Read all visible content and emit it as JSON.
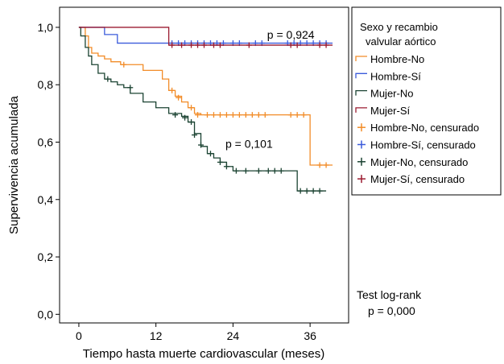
{
  "chart_data": {
    "type": "line",
    "subtype": "kaplan-meier",
    "title": "",
    "xlabel": "Tiempo hasta muerte cardiovascular (meses)",
    "ylabel": "Supervivencia acumulada",
    "xlim": [
      -3,
      42
    ],
    "ylim": [
      -0.03,
      1.07
    ],
    "x_ticks": [
      0,
      12,
      24,
      36
    ],
    "y_ticks": [
      0.0,
      0.2,
      0.4,
      0.6,
      0.8,
      1.0
    ],
    "y_tick_labels": [
      "0,0",
      "0,2",
      "0,4",
      "0,6",
      "0,8",
      "1,0"
    ],
    "grid": false,
    "legend": {
      "title": "Sexo y recambio valvular aórtico",
      "title_lines": [
        "Sexo y recambio",
        "valvular aórtico"
      ],
      "placement": "right",
      "entries": [
        {
          "label": "Hombre-No",
          "kind": "line",
          "color": "#f28c28"
        },
        {
          "label": "Hombre-Sí",
          "kind": "line",
          "color": "#3b5bdb"
        },
        {
          "label": "Mujer-No",
          "kind": "line",
          "color": "#1b4332"
        },
        {
          "label": "Mujer-Sí",
          "kind": "line",
          "color": "#9b1b30"
        },
        {
          "label": "Hombre-No, censurado",
          "kind": "censor",
          "color": "#f28c28"
        },
        {
          "label": "Hombre-Sí, censurado",
          "kind": "censor",
          "color": "#3b5bdb"
        },
        {
          "label": "Mujer-No, censurado",
          "kind": "censor",
          "color": "#1b4332"
        },
        {
          "label": "Mujer-Sí, censurado",
          "kind": "censor",
          "color": "#9b1b30"
        }
      ]
    },
    "annotations": [
      {
        "text": "p = 0,924",
        "x": 33,
        "y": 0.975,
        "anchor": "middle"
      },
      {
        "text": "p = 0,101",
        "x": 26.5,
        "y": 0.595,
        "anchor": "middle"
      }
    ],
    "series": [
      {
        "name": "Hombre-No",
        "color": "#f28c28",
        "x": [
          0,
          0.5,
          1,
          1.5,
          2,
          3,
          4,
          5,
          6.5,
          8,
          10,
          13,
          14,
          15,
          16,
          17,
          18,
          19,
          20,
          21,
          22,
          23,
          24,
          25,
          26,
          27,
          28,
          29,
          30,
          31,
          32,
          33,
          34,
          35,
          36,
          37,
          38,
          39.5
        ],
        "y": [
          1.0,
          1.0,
          0.97,
          0.93,
          0.91,
          0.9,
          0.89,
          0.88,
          0.87,
          0.87,
          0.85,
          0.82,
          0.78,
          0.76,
          0.74,
          0.72,
          0.7,
          0.695,
          0.695,
          0.695,
          0.695,
          0.695,
          0.695,
          0.695,
          0.695,
          0.695,
          0.695,
          0.695,
          0.695,
          0.695,
          0.695,
          0.695,
          0.695,
          0.695,
          0.52,
          0.52,
          0.52,
          0.52
        ],
        "censored": [
          [
            7,
            0.87
          ],
          [
            14.5,
            0.78
          ],
          [
            15.5,
            0.755
          ],
          [
            17.5,
            0.72
          ],
          [
            18.5,
            0.695
          ],
          [
            20,
            0.695
          ],
          [
            21,
            0.695
          ],
          [
            22,
            0.695
          ],
          [
            23,
            0.695
          ],
          [
            24,
            0.695
          ],
          [
            25,
            0.695
          ],
          [
            26,
            0.695
          ],
          [
            27,
            0.695
          ],
          [
            28,
            0.695
          ],
          [
            29,
            0.695
          ],
          [
            33,
            0.695
          ],
          [
            34,
            0.695
          ],
          [
            35,
            0.695
          ],
          [
            37.5,
            0.52
          ],
          [
            38.5,
            0.52
          ]
        ]
      },
      {
        "name": "Hombre-Sí",
        "color": "#3b5bdb",
        "x": [
          0,
          4,
          4,
          6,
          6,
          10,
          10,
          39.5
        ],
        "y": [
          1.0,
          1.0,
          0.975,
          0.975,
          0.945,
          0.945,
          0.945,
          0.945
        ],
        "censored": [
          [
            14.5,
            0.945
          ],
          [
            15.5,
            0.945
          ],
          [
            16.5,
            0.945
          ],
          [
            17.5,
            0.945
          ],
          [
            18.5,
            0.945
          ],
          [
            19.5,
            0.945
          ],
          [
            20.5,
            0.945
          ],
          [
            21.5,
            0.945
          ],
          [
            22.5,
            0.945
          ],
          [
            24,
            0.945
          ],
          [
            25,
            0.945
          ],
          [
            27.5,
            0.945
          ],
          [
            28.5,
            0.945
          ],
          [
            32.5,
            0.945
          ],
          [
            33.5,
            0.945
          ],
          [
            34.5,
            0.945
          ],
          [
            35.5,
            0.945
          ],
          [
            36.5,
            0.945
          ],
          [
            37.5,
            0.945
          ],
          [
            38.5,
            0.945
          ]
        ]
      },
      {
        "name": "Mujer-No",
        "color": "#1b4332",
        "x": [
          0,
          0.3,
          1,
          1.5,
          2,
          3,
          4,
          5,
          6,
          7,
          8,
          10,
          12,
          14,
          16,
          17,
          18,
          19,
          20,
          21,
          22,
          23,
          24,
          25,
          33,
          34,
          35,
          36,
          37,
          38.5
        ],
        "y": [
          1.0,
          0.97,
          0.93,
          0.9,
          0.87,
          0.84,
          0.82,
          0.81,
          0.8,
          0.79,
          0.77,
          0.74,
          0.72,
          0.7,
          0.69,
          0.67,
          0.63,
          0.585,
          0.56,
          0.545,
          0.53,
          0.515,
          0.5,
          0.5,
          0.5,
          0.43,
          0.43,
          0.43,
          0.43,
          0.43
        ],
        "censored": [
          [
            4.5,
            0.82
          ],
          [
            8,
            0.79
          ],
          [
            15,
            0.695
          ],
          [
            16.5,
            0.685
          ],
          [
            17.5,
            0.67
          ],
          [
            18,
            0.625
          ],
          [
            19,
            0.59
          ],
          [
            20.5,
            0.56
          ],
          [
            22,
            0.53
          ],
          [
            23,
            0.515
          ],
          [
            24.5,
            0.5
          ],
          [
            26,
            0.5
          ],
          [
            28,
            0.5
          ],
          [
            29.5,
            0.5
          ],
          [
            30.5,
            0.5
          ],
          [
            31.5,
            0.5
          ],
          [
            34.5,
            0.43
          ],
          [
            35.5,
            0.43
          ],
          [
            36.5,
            0.43
          ],
          [
            37.5,
            0.43
          ]
        ]
      },
      {
        "name": "Mujer-Sí",
        "color": "#9b1b30",
        "x": [
          0,
          14,
          14,
          39.5
        ],
        "y": [
          1.0,
          1.0,
          0.938,
          0.938
        ],
        "censored": [
          [
            14.5,
            0.938
          ],
          [
            16,
            0.938
          ],
          [
            17.5,
            0.938
          ],
          [
            18.5,
            0.938
          ],
          [
            19.5,
            0.938
          ],
          [
            21,
            0.938
          ],
          [
            22,
            0.938
          ],
          [
            26.5,
            0.938
          ],
          [
            33,
            0.938
          ],
          [
            34,
            0.938
          ],
          [
            37.5,
            0.938
          ],
          [
            38.5,
            0.938
          ]
        ]
      }
    ],
    "footer_annotation": {
      "lines": [
        "Test log-rank",
        "p = 0,000"
      ]
    }
  }
}
